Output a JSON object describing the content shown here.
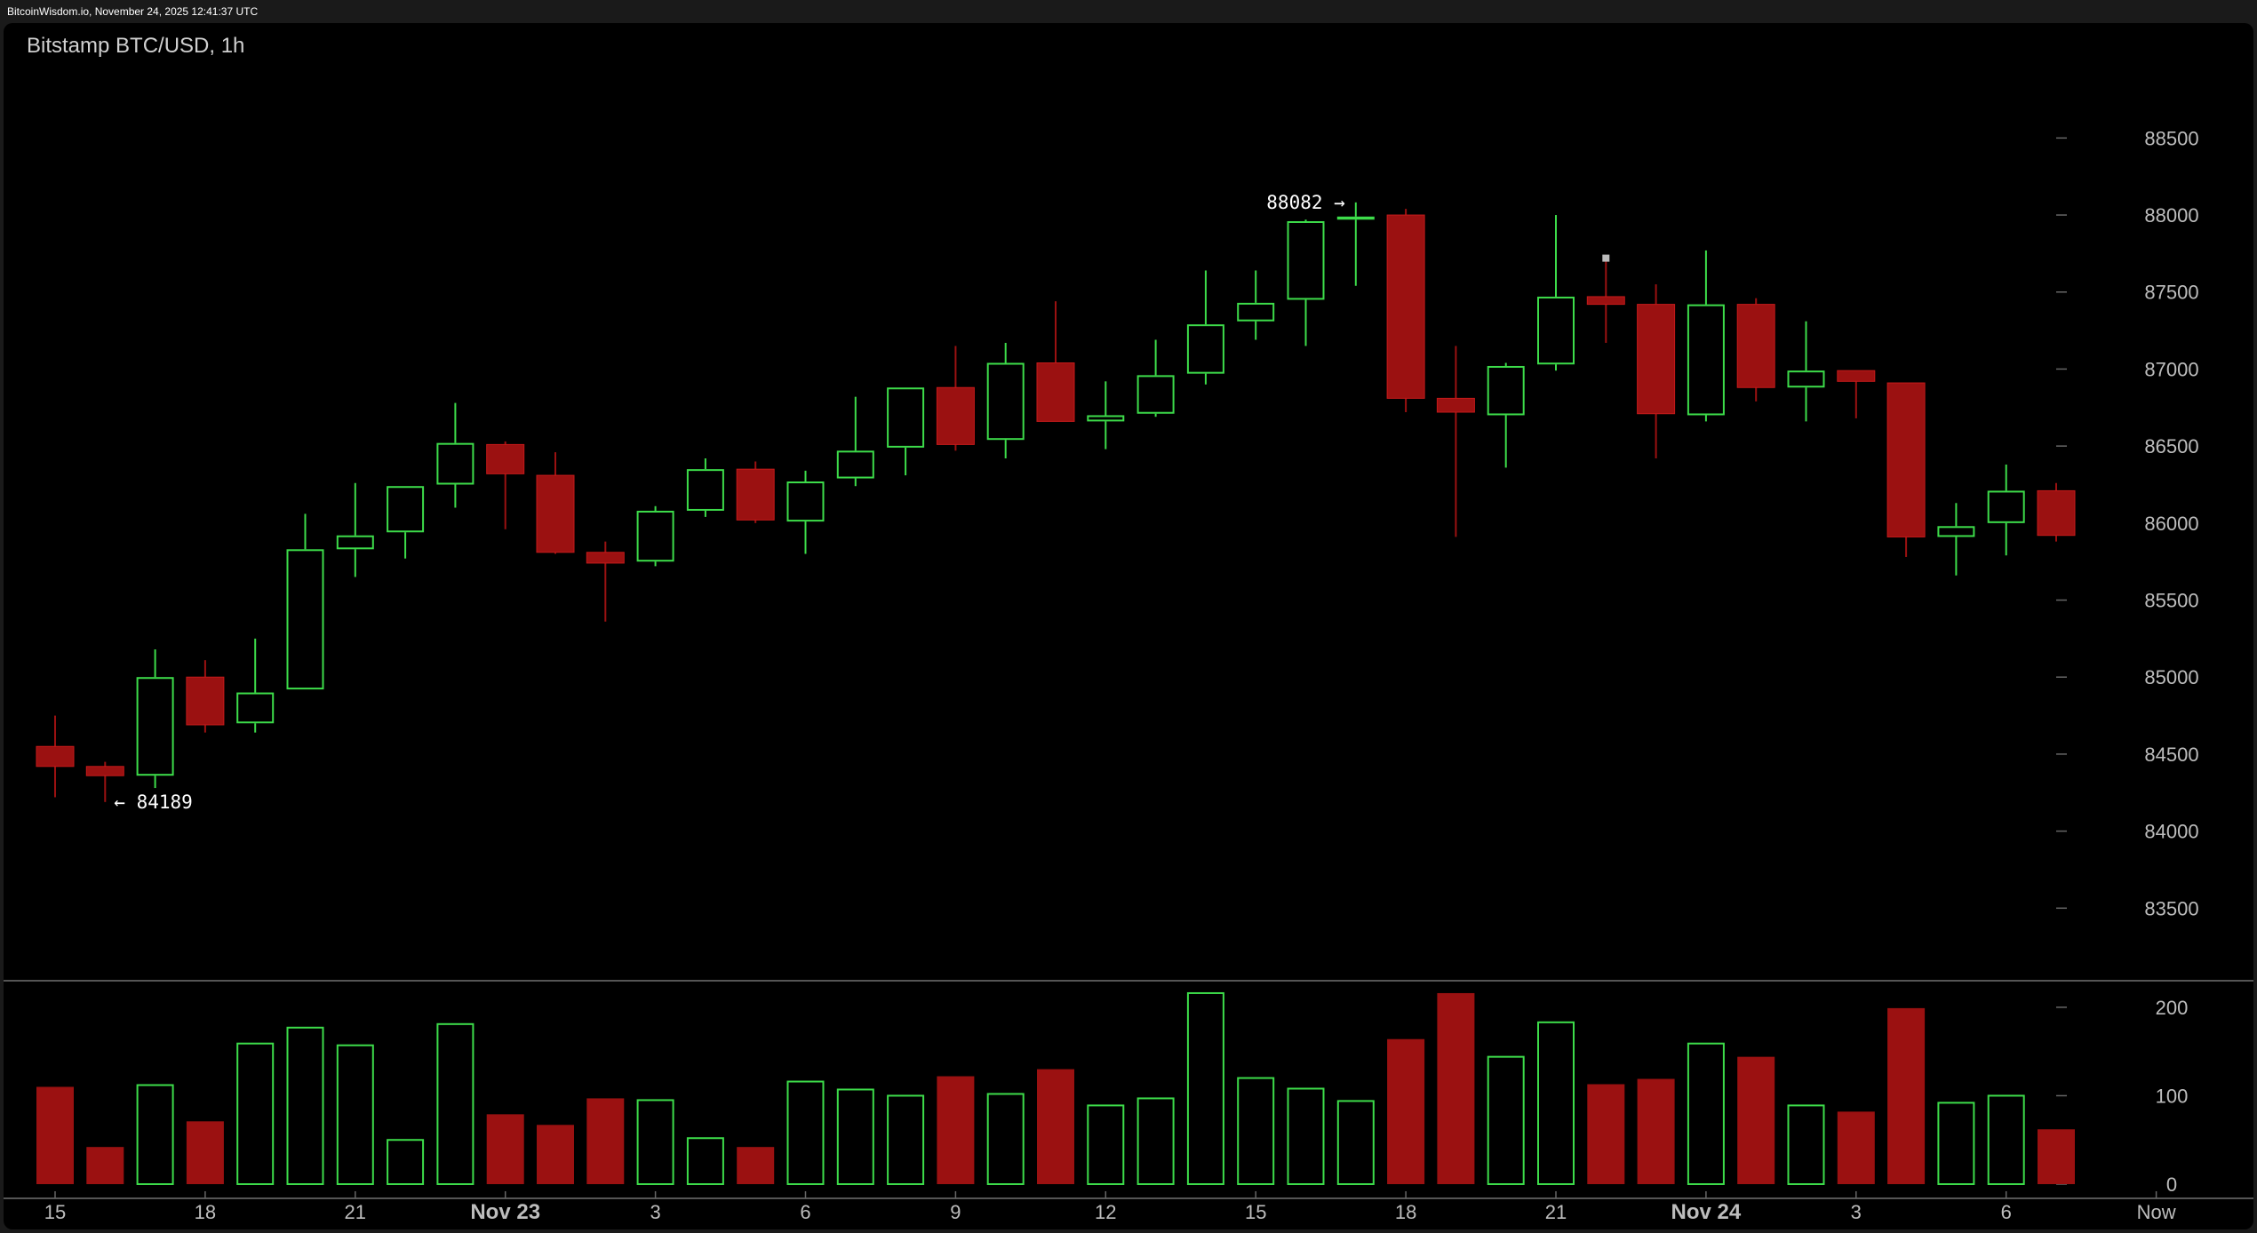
{
  "header": {
    "text": "BitcoinWisdom.io, November 24, 2025 12:41:37 UTC"
  },
  "chart_data": {
    "type": "candlestick",
    "title": "Bitstamp BTC/USD, 1h",
    "colors": {
      "up": "#3ddc4a",
      "down": "#9b1111",
      "grid": "#444444",
      "text": "#bdbdbd"
    },
    "price_axis": {
      "ylim": [
        83000,
        88900
      ],
      "ticks": [
        83500,
        84000,
        84500,
        85000,
        85500,
        86000,
        86500,
        87000,
        87500,
        88000,
        88500
      ]
    },
    "volume_axis": {
      "ylim": [
        0,
        225
      ],
      "ticks": [
        0,
        100,
        200
      ]
    },
    "x_ticks": [
      {
        "label": "15",
        "index": 0,
        "major": false
      },
      {
        "label": "18",
        "index": 3,
        "major": false
      },
      {
        "label": "21",
        "index": 6,
        "major": false
      },
      {
        "label": "Nov 23",
        "index": 9,
        "major": true
      },
      {
        "label": "3",
        "index": 12,
        "major": false
      },
      {
        "label": "6",
        "index": 15,
        "major": false
      },
      {
        "label": "9",
        "index": 18,
        "major": false
      },
      {
        "label": "12",
        "index": 21,
        "major": false
      },
      {
        "label": "15",
        "index": 24,
        "major": false
      },
      {
        "label": "18",
        "index": 27,
        "major": false
      },
      {
        "label": "21",
        "index": 30,
        "major": false
      },
      {
        "label": "Nov 24",
        "index": 33,
        "major": true
      },
      {
        "label": "3",
        "index": 36,
        "major": false
      },
      {
        "label": "6",
        "index": 39,
        "major": false
      },
      {
        "label": "Now",
        "index": 42,
        "major": false
      }
    ],
    "candles": [
      {
        "o": 84420,
        "h": 84750,
        "l": 84220,
        "c": 84550,
        "v": 110,
        "dir": "down"
      },
      {
        "o": 84420,
        "h": 84450,
        "l": 84189,
        "c": 84360,
        "v": 42,
        "dir": "down"
      },
      {
        "o": 84360,
        "h": 85180,
        "l": 84280,
        "c": 85000,
        "v": 113,
        "dir": "up"
      },
      {
        "o": 85000,
        "h": 85110,
        "l": 84640,
        "c": 84690,
        "v": 71,
        "dir": "down"
      },
      {
        "o": 84700,
        "h": 85250,
        "l": 84640,
        "c": 84900,
        "v": 160,
        "dir": "up"
      },
      {
        "o": 84920,
        "h": 86060,
        "l": 84920,
        "c": 85830,
        "v": 178,
        "dir": "up"
      },
      {
        "o": 85830,
        "h": 86260,
        "l": 85650,
        "c": 85920,
        "v": 158,
        "dir": "up"
      },
      {
        "o": 85940,
        "h": 86240,
        "l": 85770,
        "c": 86240,
        "v": 51,
        "dir": "up"
      },
      {
        "o": 86250,
        "h": 86780,
        "l": 86100,
        "c": 86520,
        "v": 182,
        "dir": "up"
      },
      {
        "o": 86510,
        "h": 86530,
        "l": 85960,
        "c": 86320,
        "v": 79,
        "dir": "down"
      },
      {
        "o": 86310,
        "h": 86460,
        "l": 85800,
        "c": 85810,
        "v": 67,
        "dir": "down"
      },
      {
        "o": 85810,
        "h": 85880,
        "l": 85360,
        "c": 85740,
        "v": 97,
        "dir": "down"
      },
      {
        "o": 85750,
        "h": 86110,
        "l": 85720,
        "c": 86080,
        "v": 96,
        "dir": "up"
      },
      {
        "o": 86080,
        "h": 86420,
        "l": 86040,
        "c": 86350,
        "v": 53,
        "dir": "up"
      },
      {
        "o": 86350,
        "h": 86400,
        "l": 86000,
        "c": 86020,
        "v": 42,
        "dir": "down"
      },
      {
        "o": 86010,
        "h": 86340,
        "l": 85800,
        "c": 86270,
        "v": 117,
        "dir": "up"
      },
      {
        "o": 86290,
        "h": 86820,
        "l": 86240,
        "c": 86470,
        "v": 108,
        "dir": "up"
      },
      {
        "o": 86490,
        "h": 86880,
        "l": 86310,
        "c": 86880,
        "v": 101,
        "dir": "up"
      },
      {
        "o": 86880,
        "h": 87150,
        "l": 86470,
        "c": 86510,
        "v": 122,
        "dir": "down"
      },
      {
        "o": 86540,
        "h": 87170,
        "l": 86420,
        "c": 87040,
        "v": 103,
        "dir": "up"
      },
      {
        "o": 87040,
        "h": 87440,
        "l": 86660,
        "c": 86660,
        "v": 130,
        "dir": "down"
      },
      {
        "o": 86660,
        "h": 86920,
        "l": 86480,
        "c": 86700,
        "v": 90,
        "dir": "up"
      },
      {
        "o": 86710,
        "h": 87190,
        "l": 86690,
        "c": 86960,
        "v": 98,
        "dir": "up"
      },
      {
        "o": 86970,
        "h": 87640,
        "l": 86900,
        "c": 87290,
        "v": 217,
        "dir": "up"
      },
      {
        "o": 87310,
        "h": 87640,
        "l": 87190,
        "c": 87430,
        "v": 121,
        "dir": "up"
      },
      {
        "o": 87450,
        "h": 87970,
        "l": 87150,
        "c": 87960,
        "v": 109,
        "dir": "up"
      },
      {
        "o": 87970,
        "h": 88082,
        "l": 87540,
        "c": 87990,
        "v": 95,
        "dir": "up"
      },
      {
        "o": 88000,
        "h": 88040,
        "l": 86720,
        "c": 86810,
        "v": 164,
        "dir": "down"
      },
      {
        "o": 86810,
        "h": 87150,
        "l": 85910,
        "c": 86720,
        "v": 216,
        "dir": "down"
      },
      {
        "o": 86700,
        "h": 87040,
        "l": 86360,
        "c": 87020,
        "v": 145,
        "dir": "up"
      },
      {
        "o": 87030,
        "h": 88000,
        "l": 86990,
        "c": 87470,
        "v": 184,
        "dir": "up"
      },
      {
        "o": 87470,
        "h": 87710,
        "l": 87170,
        "c": 87420,
        "v": 113,
        "dir": "down"
      },
      {
        "o": 87420,
        "h": 87550,
        "l": 86420,
        "c": 86710,
        "v": 119,
        "dir": "down"
      },
      {
        "o": 86700,
        "h": 87770,
        "l": 86660,
        "c": 87420,
        "v": 160,
        "dir": "up"
      },
      {
        "o": 87420,
        "h": 87460,
        "l": 86790,
        "c": 86880,
        "v": 144,
        "dir": "down"
      },
      {
        "o": 86880,
        "h": 87310,
        "l": 86660,
        "c": 86990,
        "v": 90,
        "dir": "up"
      },
      {
        "o": 86990,
        "h": 86990,
        "l": 86680,
        "c": 86920,
        "v": 82,
        "dir": "down"
      },
      {
        "o": 86910,
        "h": 86910,
        "l": 85780,
        "c": 85910,
        "v": 199,
        "dir": "down"
      },
      {
        "o": 85910,
        "h": 86130,
        "l": 85660,
        "c": 85980,
        "v": 93,
        "dir": "up"
      },
      {
        "o": 86000,
        "h": 86380,
        "l": 85790,
        "c": 86210,
        "v": 101,
        "dir": "up"
      },
      {
        "o": 86210,
        "h": 86260,
        "l": 85880,
        "c": 85920,
        "v": 62,
        "dir": "down"
      }
    ],
    "annotations": [
      {
        "text": "88082 →",
        "price": 88082,
        "index": 26,
        "side": "left"
      },
      {
        "text": "← 84189",
        "price": 84189,
        "index": 1,
        "side": "right"
      }
    ],
    "marker": {
      "index": 31,
      "price": 87720,
      "color": "#bbbbbb"
    }
  }
}
